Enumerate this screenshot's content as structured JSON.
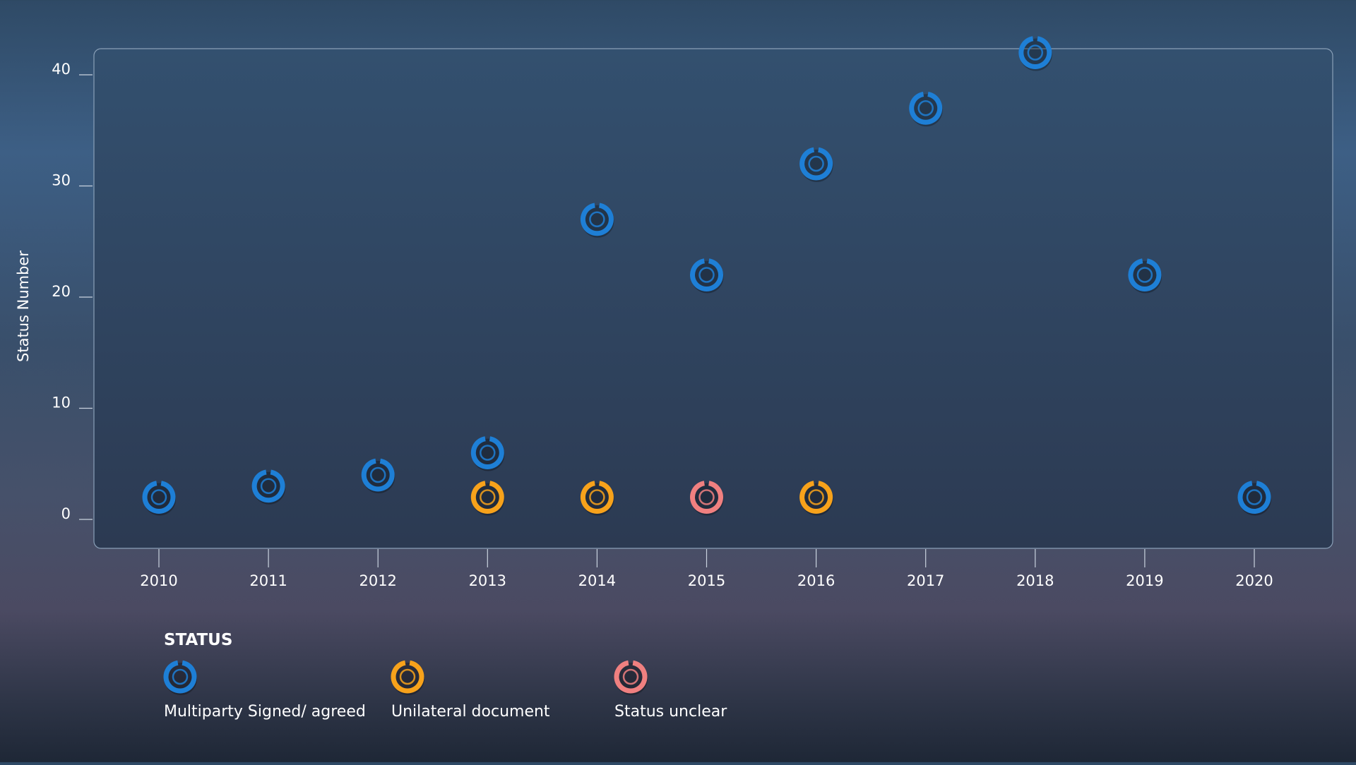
{
  "chart_data": {
    "type": "scatter",
    "ylabel": "Status Number",
    "xlabel": "",
    "xlim": [
      2010,
      2020
    ],
    "ylim": [
      0,
      45
    ],
    "x_ticks": [
      "2010",
      "2011",
      "2012",
      "2013",
      "2014",
      "2015",
      "2016",
      "2017",
      "2018",
      "2019",
      "2020"
    ],
    "y_ticks": [
      "0",
      "10",
      "20",
      "30",
      "40"
    ],
    "legend_title": "STATUS",
    "legend_position": "bottom-left",
    "series": [
      {
        "name": "Multiparty Signed/ agreed",
        "color": "#1e7fd6",
        "points": [
          {
            "x": 2010,
            "y": 2
          },
          {
            "x": 2011,
            "y": 3
          },
          {
            "x": 2012,
            "y": 4
          },
          {
            "x": 2013,
            "y": 6
          },
          {
            "x": 2014,
            "y": 27
          },
          {
            "x": 2015,
            "y": 22
          },
          {
            "x": 2016,
            "y": 32
          },
          {
            "x": 2017,
            "y": 37
          },
          {
            "x": 2018,
            "y": 42
          },
          {
            "x": 2019,
            "y": 22
          },
          {
            "x": 2020,
            "y": 2
          }
        ]
      },
      {
        "name": "Unilateral document",
        "color": "#f7a21b",
        "points": [
          {
            "x": 2013,
            "y": 2
          },
          {
            "x": 2014,
            "y": 2
          },
          {
            "x": 2016,
            "y": 2
          }
        ]
      },
      {
        "name": "Status unclear",
        "color": "#f08080",
        "points": [
          {
            "x": 2015,
            "y": 2
          }
        ]
      }
    ]
  }
}
